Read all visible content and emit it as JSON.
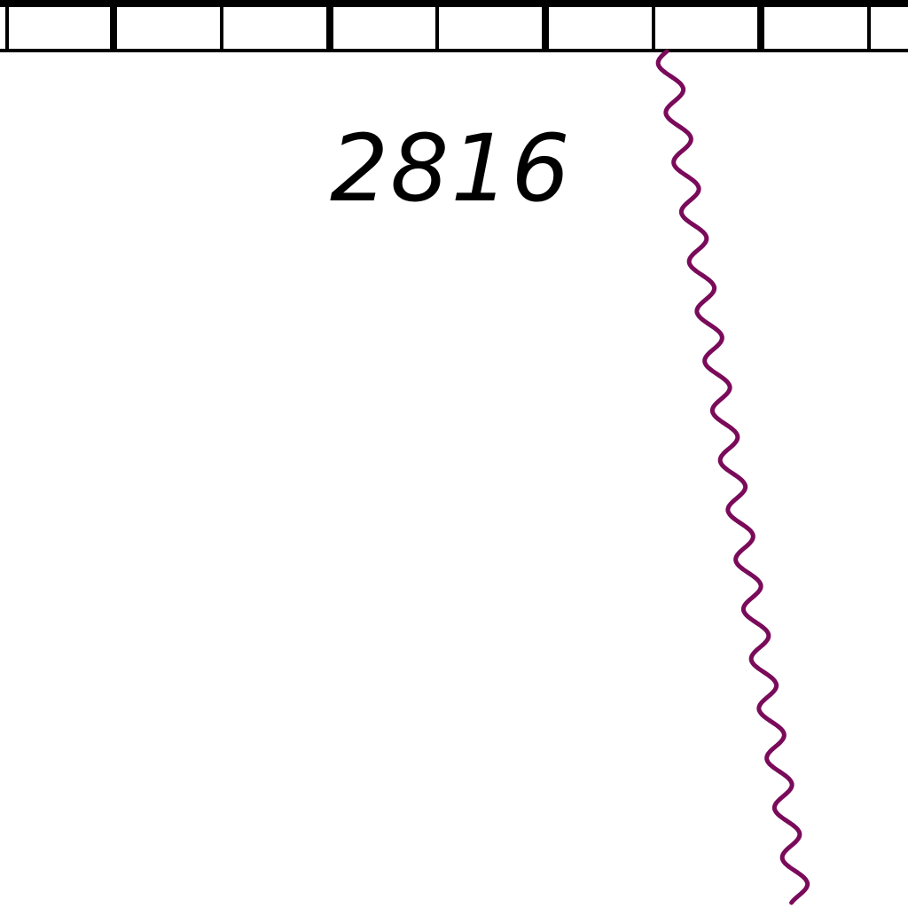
{
  "map": {
    "label": "2816",
    "colors": {
      "background": "#ffffff",
      "scale_bar": "#000000",
      "label": "#000000",
      "wavy_line": "#7a0a5a"
    }
  }
}
